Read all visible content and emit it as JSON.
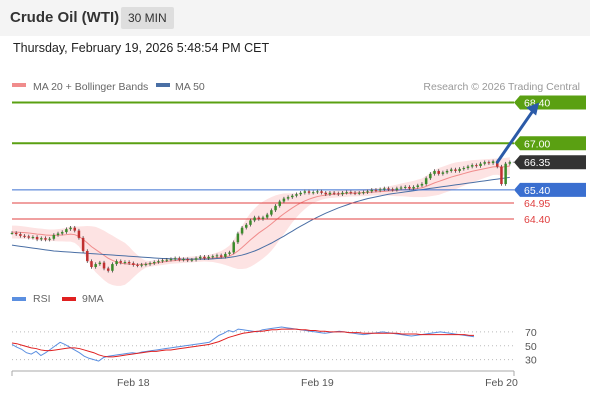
{
  "header": {
    "title": "Crude Oil (WTI)",
    "timeframe": "30 MIN",
    "datetime": "Thursday, February 19, 2026 5:48:54 PM CET"
  },
  "colors": {
    "ma20": "#f08c8c",
    "bollinger_fill": "#fde3e3",
    "ma50": "#4a6fa5",
    "green": "#5aa012",
    "blue": "#3a6fd0",
    "red": "#e04040",
    "dark": "#333333",
    "arrow": "#2b5aa8",
    "rsi": "#5b8fe0",
    "rsi_ma": "#e02020",
    "up": "#3a8a2a",
    "down": "#c03030"
  },
  "chart_data": [
    {
      "type": "candlestick",
      "legend": [
        {
          "label": "MA 20 + Bollinger Bands",
          "color": "#f08c8c"
        },
        {
          "label": "MA 50",
          "color": "#4a6fa5"
        }
      ],
      "credit": "Research © 2026 Trading Central",
      "ylim": [
        62.2,
        68.9
      ],
      "xlim": [
        0,
        120
      ],
      "levels": [
        {
          "label": "68.40",
          "value": 68.4,
          "kind": "target",
          "color": "#5aa012"
        },
        {
          "label": "67.00",
          "value": 67.0,
          "kind": "target",
          "color": "#5aa012"
        },
        {
          "label": "66.35",
          "value": 66.35,
          "kind": "last",
          "color": "#333333"
        },
        {
          "label": "65.40",
          "value": 65.4,
          "kind": "pivot",
          "color": "#3a6fd0"
        },
        {
          "label": "64.95",
          "value": 64.95,
          "kind": "support",
          "color": "#e04040"
        },
        {
          "label": "64.40",
          "value": 64.4,
          "kind": "support",
          "color": "#e04040"
        }
      ],
      "arrow": {
        "from": [
          116,
          66.35
        ],
        "to": [
          126,
          68.4
        ]
      },
      "closes": [
        63.92,
        63.88,
        63.82,
        63.8,
        63.76,
        63.78,
        63.7,
        63.74,
        63.69,
        63.72,
        63.85,
        63.9,
        63.95,
        64.05,
        64.1,
        64.0,
        63.75,
        63.3,
        62.95,
        62.75,
        62.85,
        62.9,
        62.7,
        62.62,
        62.85,
        62.95,
        62.9,
        62.92,
        62.88,
        62.82,
        62.8,
        62.83,
        62.85,
        62.88,
        62.92,
        62.95,
        62.98,
        63.0,
        63.02,
        63.05,
        63.0,
        63.02,
        62.98,
        63.0,
        63.05,
        63.1,
        63.05,
        63.1,
        63.12,
        63.15,
        63.1,
        63.2,
        63.25,
        63.6,
        63.9,
        64.1,
        64.2,
        64.35,
        64.45,
        64.4,
        64.45,
        64.55,
        64.7,
        64.85,
        65.0,
        65.1,
        65.15,
        65.2,
        65.25,
        65.3,
        65.35,
        65.3,
        65.32,
        65.35,
        65.3,
        65.25,
        65.3,
        65.28,
        65.25,
        65.3,
        65.32,
        65.3,
        65.28,
        65.3,
        65.32,
        65.35,
        65.4,
        65.38,
        65.42,
        65.45,
        65.42,
        65.4,
        65.45,
        65.48,
        65.5,
        65.45,
        65.5,
        65.55,
        65.6,
        65.8,
        65.95,
        66.05,
        65.95,
        66.0,
        66.05,
        66.1,
        66.05,
        66.12,
        66.15,
        66.2,
        66.25,
        66.22,
        66.3,
        66.35,
        66.32,
        66.38,
        66.2,
        65.6,
        66.3,
        66.35
      ],
      "ma20": [
        63.95,
        63.95,
        63.94,
        63.93,
        63.92,
        63.9,
        63.88,
        63.87,
        63.85,
        63.84,
        63.84,
        63.84,
        63.85,
        63.86,
        63.88,
        63.86,
        63.8,
        63.7,
        63.58,
        63.45,
        63.35,
        63.25,
        63.15,
        63.05,
        62.98,
        62.92,
        62.88,
        62.86,
        62.85,
        62.84,
        62.84,
        62.84,
        62.85,
        62.86,
        62.88,
        62.9,
        62.92,
        62.94,
        62.96,
        62.97,
        62.98,
        62.99,
        63.0,
        63.01,
        63.02,
        63.03,
        63.04,
        63.05,
        63.06,
        63.07,
        63.08,
        63.1,
        63.13,
        63.2,
        63.3,
        63.42,
        63.55,
        63.68,
        63.8,
        63.92,
        64.02,
        64.12,
        64.23,
        64.35,
        64.47,
        64.58,
        64.68,
        64.78,
        64.87,
        64.95,
        65.02,
        65.08,
        65.13,
        65.17,
        65.2,
        65.22,
        65.24,
        65.25,
        65.26,
        65.27,
        65.28,
        65.29,
        65.29,
        65.3,
        65.3,
        65.31,
        65.32,
        65.33,
        65.34,
        65.35,
        65.36,
        65.37,
        65.38,
        65.4,
        65.41,
        65.42,
        65.43,
        65.45,
        65.47,
        65.52,
        65.58,
        65.64,
        65.69,
        65.74,
        65.79,
        65.84,
        65.88,
        65.92,
        65.96,
        66.0,
        66.04,
        66.07,
        66.1,
        66.13,
        66.16,
        66.19,
        66.2,
        66.18,
        66.2,
        66.22
      ],
      "bb_width": [
        0.22,
        0.22,
        0.22,
        0.21,
        0.2,
        0.2,
        0.2,
        0.2,
        0.2,
        0.2,
        0.2,
        0.21,
        0.22,
        0.24,
        0.26,
        0.28,
        0.34,
        0.45,
        0.58,
        0.7,
        0.78,
        0.82,
        0.85,
        0.86,
        0.85,
        0.82,
        0.78,
        0.72,
        0.6,
        0.45,
        0.32,
        0.2,
        0.12,
        0.1,
        0.1,
        0.1,
        0.1,
        0.1,
        0.1,
        0.1,
        0.1,
        0.1,
        0.1,
        0.1,
        0.1,
        0.1,
        0.1,
        0.12,
        0.14,
        0.18,
        0.22,
        0.28,
        0.36,
        0.48,
        0.62,
        0.74,
        0.85,
        0.92,
        0.96,
        0.98,
        0.98,
        0.96,
        0.92,
        0.86,
        0.78,
        0.7,
        0.6,
        0.5,
        0.42,
        0.34,
        0.28,
        0.22,
        0.18,
        0.16,
        0.14,
        0.12,
        0.12,
        0.12,
        0.12,
        0.12,
        0.12,
        0.12,
        0.12,
        0.12,
        0.12,
        0.12,
        0.12,
        0.12,
        0.12,
        0.14,
        0.16,
        0.18,
        0.2,
        0.22,
        0.24,
        0.26,
        0.28,
        0.3,
        0.32,
        0.36,
        0.4,
        0.44,
        0.46,
        0.46,
        0.46,
        0.46,
        0.46,
        0.44,
        0.42,
        0.4,
        0.38,
        0.36,
        0.34,
        0.32,
        0.3,
        0.28,
        0.28,
        0.3,
        0.3,
        0.3
      ],
      "ma50": [
        63.5,
        63.48,
        63.46,
        63.44,
        63.42,
        63.4,
        63.38,
        63.36,
        63.34,
        63.32,
        63.3,
        63.29,
        63.28,
        63.27,
        63.26,
        63.25,
        63.24,
        63.23,
        63.22,
        63.21,
        63.2,
        63.19,
        63.18,
        63.17,
        63.16,
        63.15,
        63.14,
        63.13,
        63.12,
        63.11,
        63.1,
        63.09,
        63.08,
        63.07,
        63.06,
        63.05,
        63.04,
        63.04,
        63.03,
        63.03,
        63.02,
        63.02,
        63.02,
        63.02,
        63.02,
        63.02,
        63.02,
        63.02,
        63.03,
        63.04,
        63.05,
        63.06,
        63.08,
        63.1,
        63.13,
        63.16,
        63.2,
        63.25,
        63.3,
        63.36,
        63.43,
        63.5,
        63.57,
        63.65,
        63.73,
        63.81,
        63.9,
        63.98,
        64.07,
        64.15,
        64.23,
        64.31,
        64.39,
        64.46,
        64.53,
        64.6,
        64.66,
        64.72,
        64.78,
        64.83,
        64.88,
        64.93,
        64.98,
        65.02,
        65.06,
        65.1,
        65.13,
        65.16,
        65.19,
        65.22,
        65.25,
        65.27,
        65.29,
        65.31,
        65.33,
        65.35,
        65.37,
        65.39,
        65.41,
        65.43,
        65.45,
        65.47,
        65.49,
        65.51,
        65.53,
        65.55,
        65.57,
        65.59,
        65.61,
        65.63,
        65.65,
        65.67,
        65.69,
        65.71,
        65.73,
        65.75,
        65.77,
        65.79,
        65.81,
        65.83
      ]
    },
    {
      "type": "line",
      "legend": [
        {
          "label": "RSI",
          "color": "#5b8fe0"
        },
        {
          "label": "9MA",
          "color": "#e02020"
        }
      ],
      "ylim": [
        18,
        90
      ],
      "yticks": [
        "70",
        "50",
        "30"
      ],
      "ytick_values": [
        70,
        50,
        30
      ],
      "xticks": [
        "Feb 18",
        "Feb 19",
        "Feb 20"
      ],
      "xtick_positions": [
        29,
        73,
        117
      ],
      "series": [
        {
          "name": "RSI",
          "values": [
            52,
            48,
            45,
            40,
            38,
            42,
            36,
            40,
            45,
            50,
            55,
            52,
            48,
            44,
            40,
            35,
            32,
            30,
            28,
            33,
            35,
            36,
            37,
            38,
            39,
            40,
            39,
            41,
            42,
            43,
            44,
            45,
            46,
            47,
            48,
            49,
            50,
            51,
            52,
            53,
            54,
            55,
            60,
            65,
            68,
            72,
            70,
            74,
            73,
            72,
            71,
            70,
            73,
            74,
            75,
            76,
            77,
            76,
            75,
            74,
            73,
            72,
            71,
            70,
            69,
            68,
            69,
            70,
            71,
            70,
            69,
            68,
            67,
            66,
            67,
            68,
            69,
            70,
            69,
            68,
            67,
            66,
            65,
            64,
            65,
            66,
            67,
            68,
            69,
            70,
            69,
            68,
            67,
            66,
            65,
            64,
            63
          ]
        },
        {
          "name": "9MA",
          "values": [
            54,
            53,
            51,
            49,
            47,
            46,
            44,
            43,
            43,
            44,
            45,
            46,
            47,
            47,
            46,
            44,
            42,
            40,
            37,
            35,
            34,
            34,
            35,
            36,
            37,
            38,
            39,
            40,
            41,
            42,
            42,
            43,
            44,
            44,
            45,
            46,
            47,
            48,
            49,
            50,
            51,
            52,
            54,
            56,
            59,
            62,
            64,
            66,
            68,
            69,
            70,
            71,
            71,
            72,
            73,
            73,
            74,
            74,
            74,
            74,
            73,
            73,
            72,
            72,
            71,
            71,
            70,
            70,
            70,
            70,
            69,
            69,
            69,
            68,
            68,
            68,
            68,
            68,
            68,
            68,
            68,
            67,
            67,
            67,
            67,
            66,
            66,
            66,
            66,
            66,
            66,
            66,
            66,
            66,
            66,
            65,
            65
          ]
        }
      ]
    }
  ]
}
